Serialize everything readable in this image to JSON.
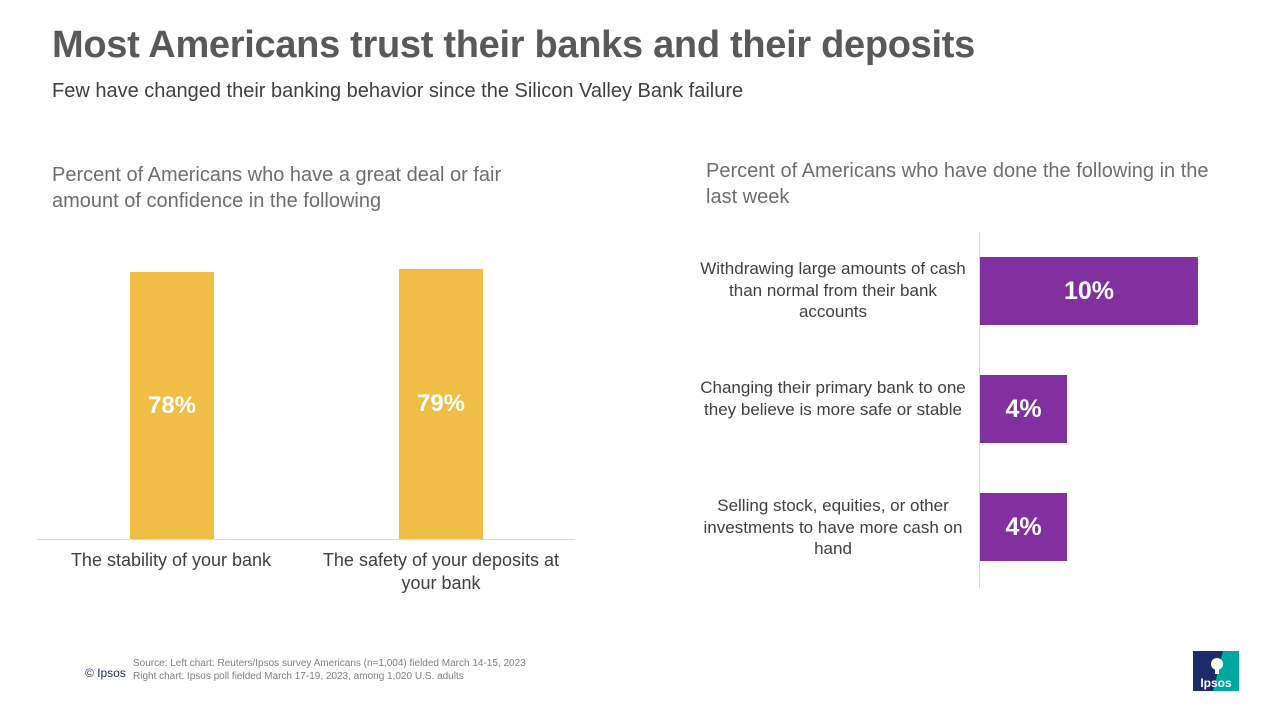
{
  "header": {
    "title": "Most Americans trust their banks and their deposits",
    "subtitle": "Few have changed their banking behavior since the Silicon Valley Bank failure"
  },
  "chart_data": [
    {
      "type": "bar",
      "title": "Percent of Americans who have a great deal or fair amount of confidence in the following",
      "categories": [
        "The stability of your bank",
        "The safety of your deposits at your bank"
      ],
      "values": [
        78,
        79
      ],
      "value_labels": [
        "78%",
        "79%"
      ],
      "color": "#f0be45",
      "orientation": "vertical"
    },
    {
      "type": "bar",
      "title": "Percent of Americans who have done the following in the last week",
      "categories": [
        "Withdrawing large amounts of cash than normal from their bank accounts",
        "Changing their primary bank to one they believe is more safe or stable",
        "Selling stock, equities, or other investments to have more cash on hand"
      ],
      "values": [
        10,
        4,
        4
      ],
      "value_labels": [
        "10%",
        "4%",
        "4%"
      ],
      "color": "#8230a0",
      "orientation": "horizontal"
    }
  ],
  "footer": {
    "copyright": "© Ipsos",
    "source_line1": "Source: Left chart: Reuters/Ipsos survey Americans (n=1,004) fielded March 14-15, 2023",
    "source_line2": "Right chart: Ipsos poll fielded March 17-19, 2023, among 1,020 U.S. adults",
    "logo_text": "Ipsos",
    "logo_color": "#00a6a0"
  }
}
